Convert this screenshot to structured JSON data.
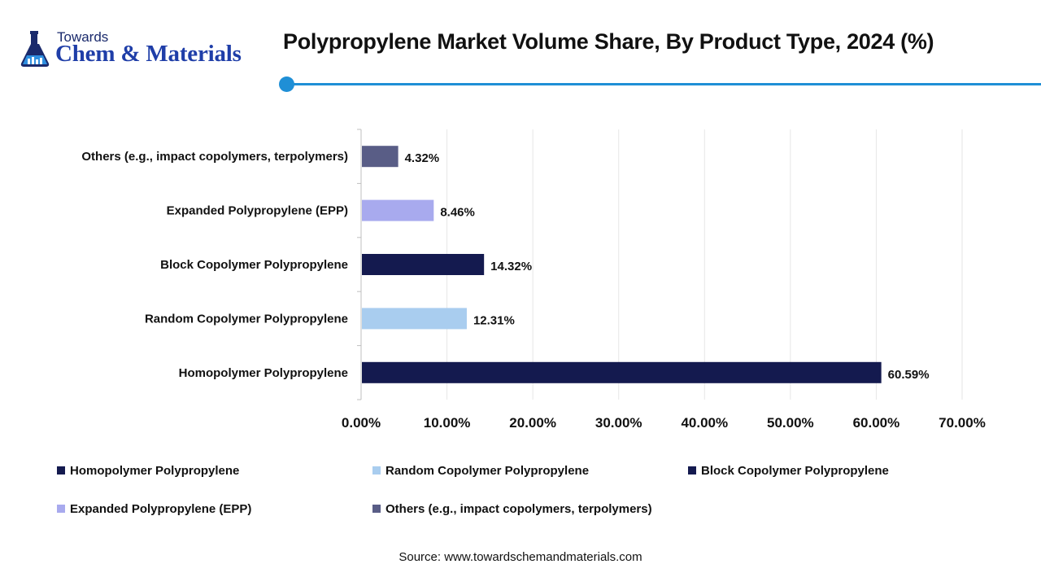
{
  "brand": {
    "small": "Towards",
    "name": "Chem & Materials"
  },
  "title": "Polypropylene Market Volume Share, By Product Type, 2024 (%)",
  "chart_data": {
    "type": "bar",
    "orientation": "horizontal",
    "title": "Polypropylene Market Volume Share, By Product Type, 2024 (%)",
    "categories": [
      "Homopolymer Polypropylene",
      "Random Copolymer Polypropylene",
      "Block Copolymer Polypropylene",
      "Expanded Polypropylene (EPP)",
      "Others (e.g., impact copolymers, terpolymers)"
    ],
    "values": [
      60.59,
      12.31,
      14.32,
      8.46,
      4.32
    ],
    "value_labels": [
      "60.59%",
      "12.31%",
      "14.32%",
      "8.46%",
      "4.32%"
    ],
    "colors": [
      "#141a4f",
      "#a9cdef",
      "#141a4f",
      "#a8aaee",
      "#595d86"
    ],
    "xlim": [
      0,
      70
    ],
    "xticks": [
      "0.00%",
      "10.00%",
      "20.00%",
      "30.00%",
      "40.00%",
      "50.00%",
      "60.00%",
      "70.00%"
    ],
    "xlabel": "",
    "ylabel": "",
    "grid": true,
    "legend_position": "bottom"
  },
  "legend": [
    {
      "label": "Homopolymer Polypropylene",
      "color": "#141a4f"
    },
    {
      "label": "Random Copolymer Polypropylene",
      "color": "#a9cdef"
    },
    {
      "label": "Block Copolymer Polypropylene",
      "color": "#141a4f"
    },
    {
      "label": "Expanded Polypropylene (EPP)",
      "color": "#a8aaee"
    },
    {
      "label": "Others (e.g., impact copolymers, terpolymers)",
      "color": "#595d86"
    }
  ],
  "source": "Source: www.towardschemandmaterials.com"
}
